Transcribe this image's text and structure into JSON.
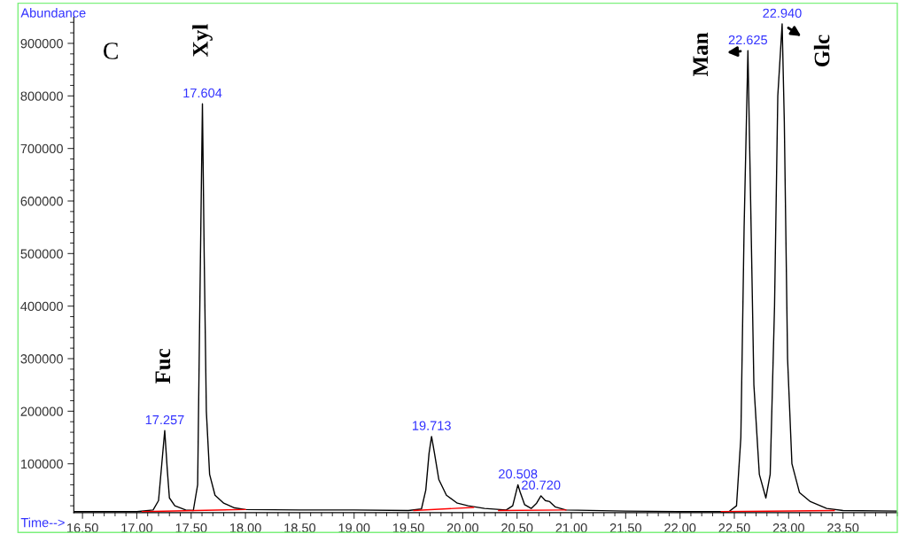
{
  "chart_data": {
    "type": "line",
    "xlabel": "Time-->",
    "ylabel": "Abundance",
    "xlim": [
      16.42,
      24.0
    ],
    "ylim": [
      7000,
      950000
    ],
    "xticks": [
      {
        "value": 16.5,
        "label": "16.50"
      },
      {
        "value": 17.0,
        "label": "17.00"
      },
      {
        "value": 17.5,
        "label": "17.50"
      },
      {
        "value": 18.0,
        "label": "18.00"
      },
      {
        "value": 18.5,
        "label": "18.50"
      },
      {
        "value": 19.0,
        "label": "19.00"
      },
      {
        "value": 19.5,
        "label": "19.50"
      },
      {
        "value": 20.0,
        "label": "20.00"
      },
      {
        "value": 20.5,
        "label": "20.50"
      },
      {
        "value": 21.0,
        "label": "21.00"
      },
      {
        "value": 21.5,
        "label": "21.50"
      },
      {
        "value": 22.0,
        "label": "22.00"
      },
      {
        "value": 22.5,
        "label": "22.50"
      },
      {
        "value": 23.0,
        "label": "23.00"
      },
      {
        "value": 23.5,
        "label": "23.50"
      }
    ],
    "yticks": [
      100000,
      200000,
      300000,
      400000,
      500000,
      600000,
      700000,
      800000,
      900000
    ],
    "grid": false,
    "legend": false,
    "marker": "none",
    "line_style": "solid",
    "series": [
      {
        "color": "#000000",
        "x": [
          16.42,
          17.0,
          17.15,
          17.2,
          17.23,
          17.257,
          17.28,
          17.3,
          17.35,
          17.45,
          17.52,
          17.56,
          17.58,
          17.604,
          17.62,
          17.64,
          17.67,
          17.72,
          17.8,
          17.9,
          18.0,
          18.5,
          19.0,
          19.5,
          19.62,
          19.66,
          19.69,
          19.713,
          19.74,
          19.78,
          19.85,
          19.95,
          20.05,
          20.2,
          20.4,
          20.46,
          20.49,
          20.508,
          20.53,
          20.57,
          20.63,
          20.68,
          20.72,
          20.76,
          20.8,
          20.85,
          20.95,
          21.5,
          22.0,
          22.45,
          22.52,
          22.56,
          22.59,
          22.625,
          22.65,
          22.68,
          22.73,
          22.79,
          22.83,
          22.87,
          22.9,
          22.94,
          22.96,
          22.99,
          23.03,
          23.1,
          23.2,
          23.35,
          23.5,
          24.0
        ],
        "values": [
          9000,
          9000,
          12000,
          30000,
          100000,
          163000,
          90000,
          35000,
          20000,
          12000,
          11000,
          60000,
          400000,
          785000,
          500000,
          200000,
          80000,
          40000,
          25000,
          16000,
          13000,
          12000,
          12000,
          11000,
          14000,
          50000,
          120000,
          152000,
          120000,
          70000,
          40000,
          25000,
          20000,
          15000,
          12000,
          20000,
          45000,
          60000,
          45000,
          22000,
          15000,
          25000,
          39000,
          30000,
          28000,
          18000,
          12000,
          10000,
          9000,
          9000,
          20000,
          150000,
          550000,
          886000,
          600000,
          250000,
          80000,
          35000,
          80000,
          400000,
          800000,
          937000,
          750000,
          300000,
          100000,
          45000,
          28000,
          15000,
          11000,
          10000
        ]
      },
      {
        "color": "#ff0000",
        "x": [
          17.05,
          18.0,
          18.01,
          19.55,
          20.1,
          20.11,
          20.33,
          20.95,
          20.96,
          22.38,
          23.42
        ],
        "values": [
          9000,
          13000,
          null,
          11000,
          17000,
          null,
          11000,
          12000,
          null,
          9000,
          11000
        ]
      }
    ],
    "annotations": [
      {
        "text": "17.257",
        "x": 17.257,
        "y": 163000
      },
      {
        "text": "17.604",
        "x": 17.604,
        "y": 785000
      },
      {
        "text": "19.713",
        "x": 19.713,
        "y": 152000
      },
      {
        "text": "20.508",
        "x": 20.508,
        "y": 60000
      },
      {
        "text": "20.720",
        "x": 20.72,
        "y": 39000
      },
      {
        "text": "22.625",
        "x": 22.625,
        "y": 886000
      },
      {
        "text": "22.940",
        "x": 22.94,
        "y": 937000
      },
      {
        "text": "Fuc",
        "x": 17.257,
        "y": 163000
      },
      {
        "text": "Xyl",
        "x": 17.604,
        "y": 785000
      },
      {
        "text": "Man",
        "x": 22.625,
        "y": 886000
      },
      {
        "text": "Glc",
        "x": 22.94,
        "y": 937000
      },
      "C"
    ]
  }
}
